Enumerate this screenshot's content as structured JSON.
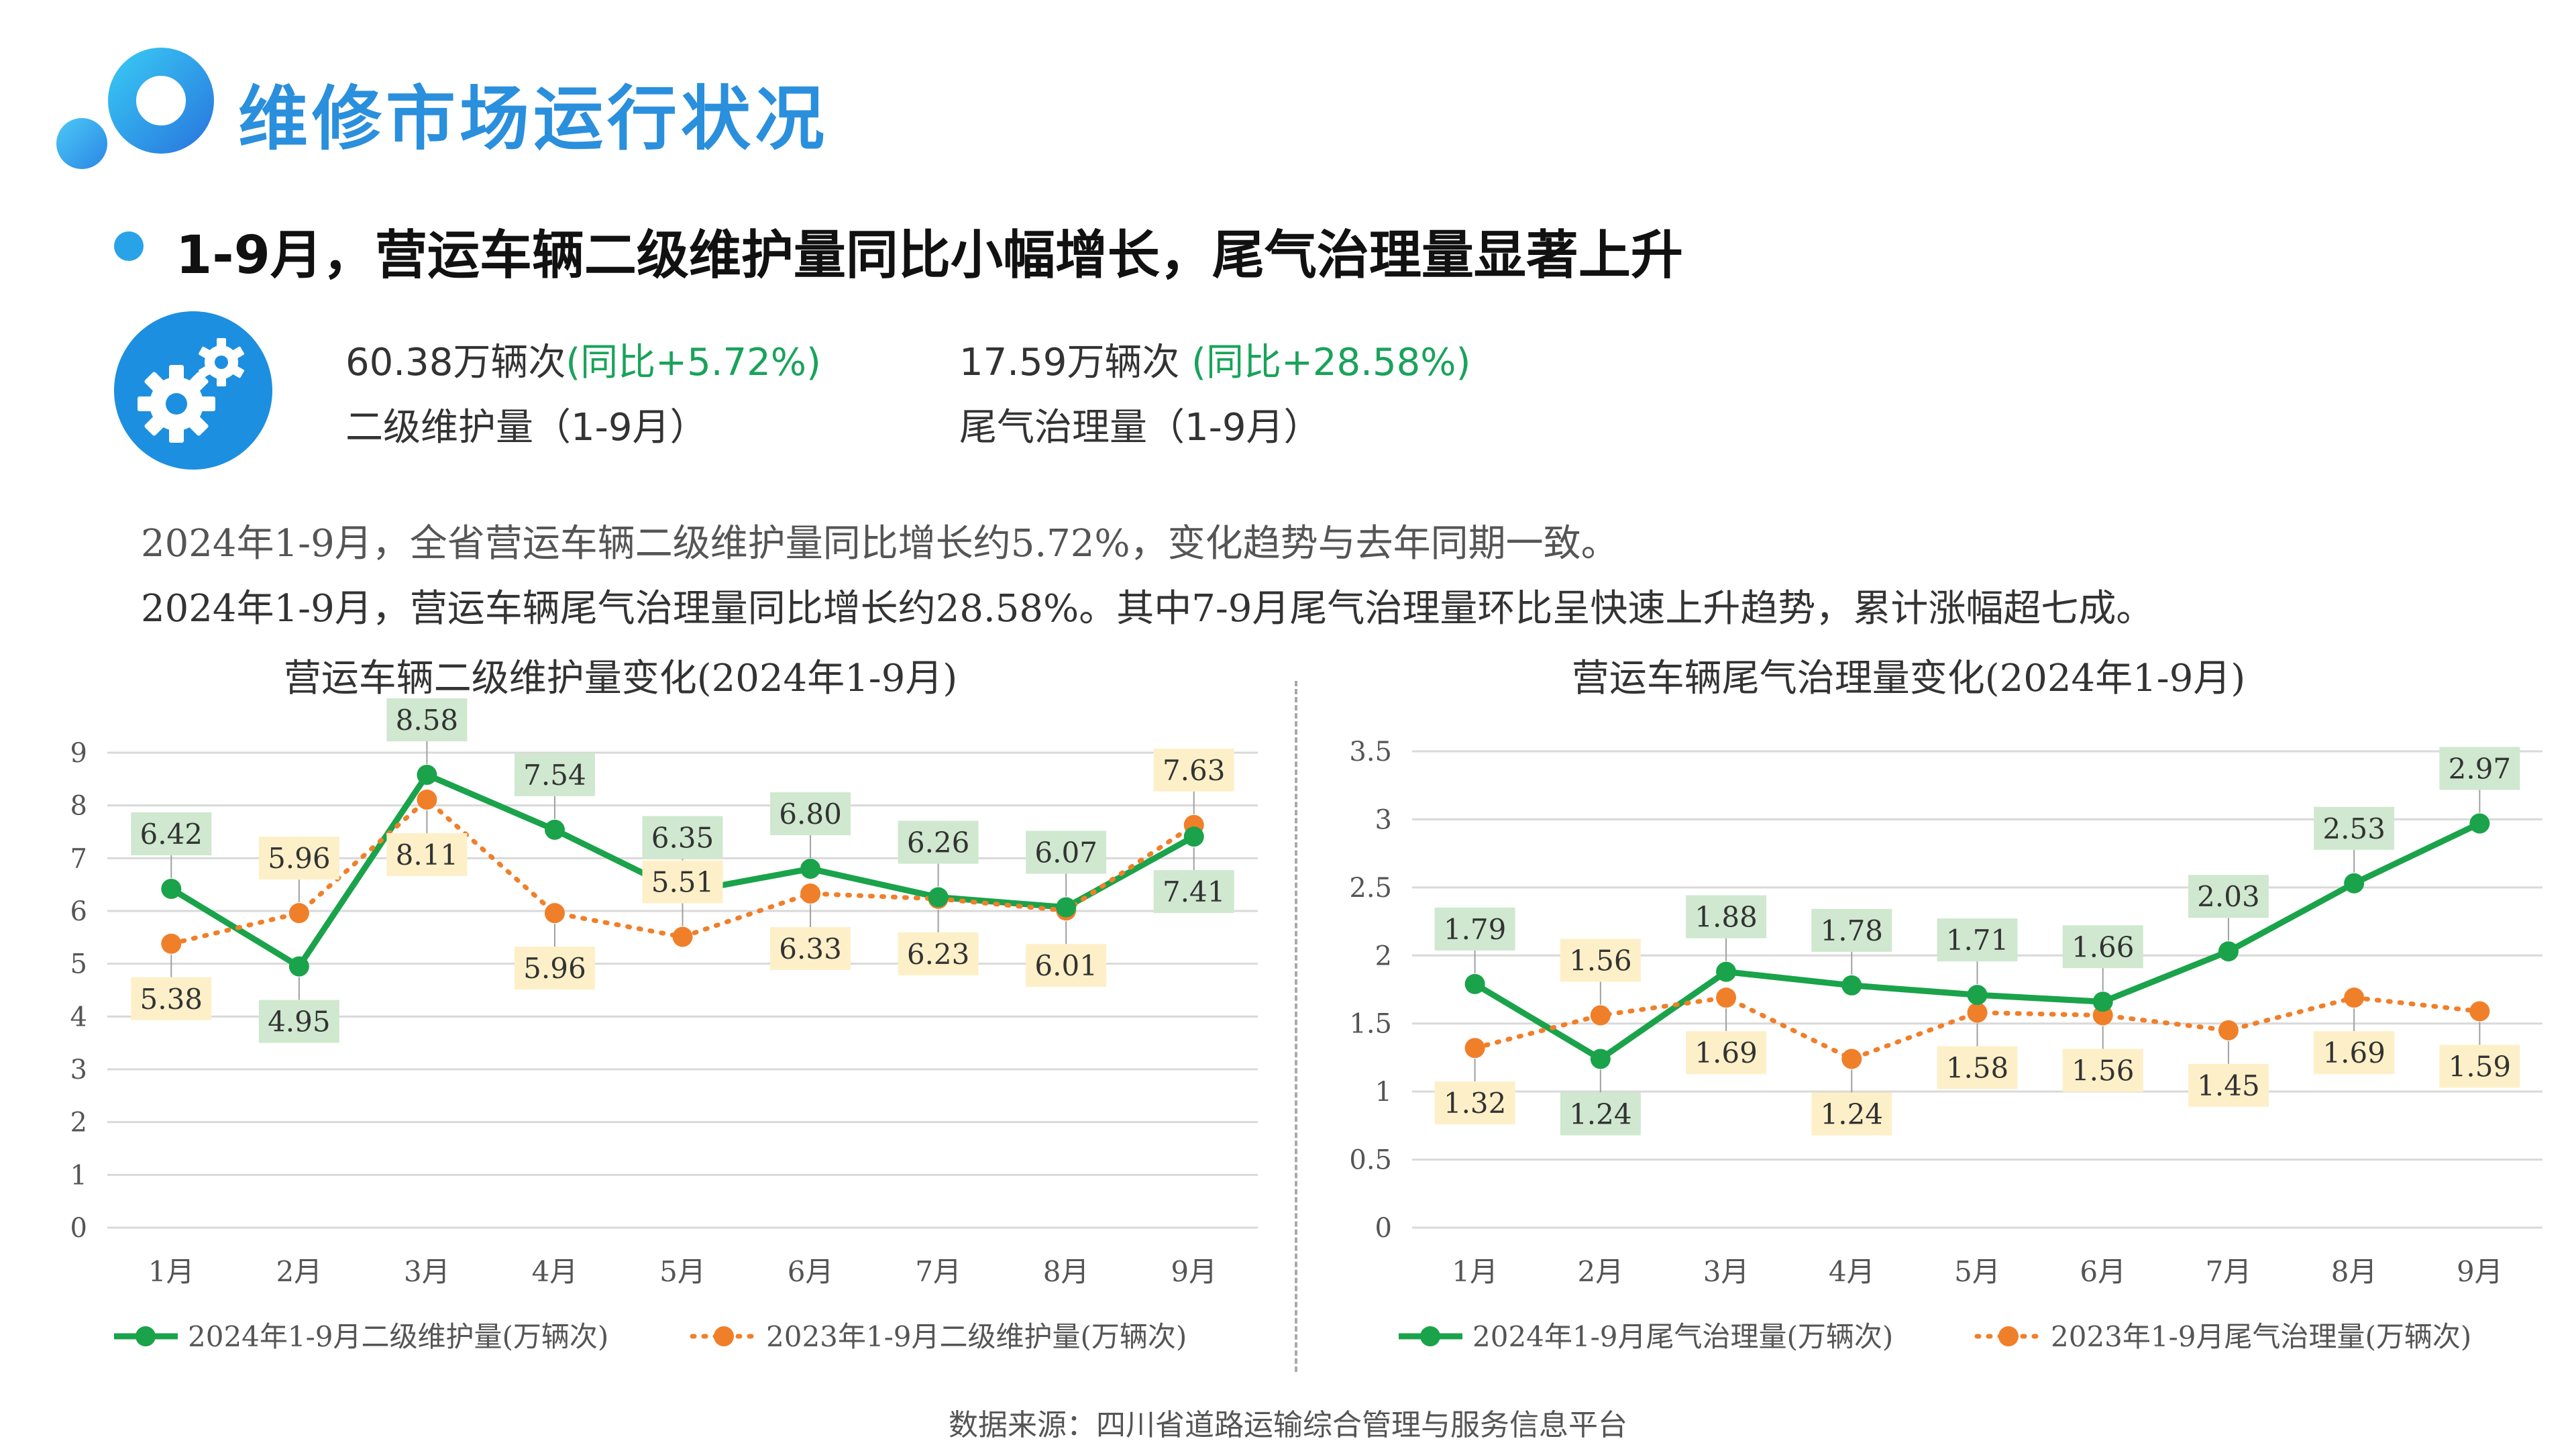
{
  "header": {
    "title": "维修市场运行状况",
    "subtitle": "1-9月，营运车辆二级维护量同比小幅增长，尾气治理量显著上升",
    "accent_color": "#2a8fdc"
  },
  "kpis": [
    {
      "value": "60.38万辆次",
      "change": "(同比+5.72%)",
      "label": "二级维护量（1-9月）"
    },
    {
      "value": "17.59万辆次",
      "change": "(同比+28.58%)",
      "label": "尾气治理量（1-9月）"
    }
  ],
  "descriptions": [
    "2024年1-9月，全省营运车辆二级维护量同比增长约5.72%，变化趋势与去年同期一致。",
    "2024年1-9月，营运车辆尾气治理量同比增长约28.58%。其中7-9月尾气治理量环比呈快速上升趋势，累计涨幅超七成。"
  ],
  "source": "数据来源：四川省道路运输综合管理与服务信息平台",
  "chart_data": [
    {
      "type": "line",
      "title": "营运车辆二级维护量变化(2024年1-9月)",
      "categories": [
        "1月",
        "2月",
        "3月",
        "4月",
        "5月",
        "6月",
        "7月",
        "8月",
        "9月"
      ],
      "ylim": [
        0,
        9
      ],
      "yticks": [
        "0",
        "1",
        "2",
        "3",
        "4",
        "5",
        "6",
        "7",
        "8",
        "9"
      ],
      "grid": true,
      "legend": "bottom",
      "series": [
        {
          "name": "2024年1-9月二级维护量(万辆次)",
          "values": [
            6.42,
            4.95,
            8.58,
            7.54,
            6.35,
            6.8,
            6.26,
            6.07,
            7.41
          ],
          "labels": [
            "6.42",
            "4.95",
            "8.58",
            "7.54",
            "6.35",
            "6.80",
            "6.26",
            "6.07",
            "7.41"
          ],
          "color": "#1aa34a",
          "label_bg": "#cfe8cf",
          "style": "solid"
        },
        {
          "name": "2023年1-9月二级维护量(万辆次)",
          "values": [
            5.38,
            5.96,
            8.11,
            5.96,
            5.51,
            6.33,
            6.23,
            6.01,
            7.63
          ],
          "labels": [
            "5.38",
            "5.96",
            "8.11",
            "5.96",
            "5.51",
            "6.33",
            "6.23",
            "6.01",
            "7.63"
          ],
          "color": "#f07f2a",
          "label_bg": "#fdf0c8",
          "style": "dotted"
        }
      ]
    },
    {
      "type": "line",
      "title": "营运车辆尾气治理量变化(2024年1-9月)",
      "categories": [
        "1月",
        "2月",
        "3月",
        "4月",
        "5月",
        "6月",
        "7月",
        "8月",
        "9月"
      ],
      "ylim": [
        0,
        3.5
      ],
      "yticks": [
        "0",
        "0.5",
        "1",
        "1.5",
        "2",
        "2.5",
        "3",
        "3.5"
      ],
      "grid": true,
      "legend": "bottom",
      "series": [
        {
          "name": "2024年1-9月尾气治理量(万辆次)",
          "values": [
            1.79,
            1.24,
            1.88,
            1.78,
            1.71,
            1.66,
            2.03,
            2.53,
            2.97
          ],
          "labels": [
            "1.79",
            "1.24",
            "1.88",
            "1.78",
            "1.71",
            "1.66",
            "2.03",
            "2.53",
            "2.97"
          ],
          "color": "#1aa34a",
          "label_bg": "#cfe8cf",
          "style": "solid"
        },
        {
          "name": "2023年1-9月尾气治理量(万辆次)",
          "values": [
            1.32,
            1.56,
            1.69,
            1.24,
            1.58,
            1.56,
            1.45,
            1.69,
            1.59
          ],
          "labels": [
            "1.32",
            "1.56",
            "1.69",
            "1.24",
            "1.58",
            "1.56",
            "1.45",
            "1.69",
            "1.59"
          ],
          "color": "#f07f2a",
          "label_bg": "#fdf0c8",
          "style": "dotted"
        }
      ]
    }
  ]
}
